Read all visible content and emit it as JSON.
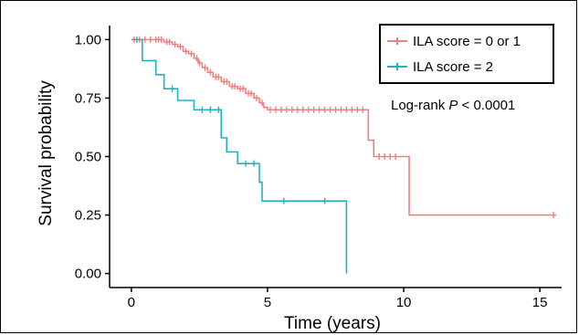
{
  "chart_data": {
    "type": "line",
    "subtype": "kaplan-meier-step",
    "title": "",
    "xlabel": "Time (years)",
    "ylabel": "Survival probability",
    "xlim": [
      -0.8,
      15.8
    ],
    "ylim": [
      -0.06,
      1.06
    ],
    "x_ticks": [
      0,
      5,
      10,
      15
    ],
    "y_ticks": [
      0.0,
      0.25,
      0.5,
      0.75,
      1.0
    ],
    "y_tick_labels": [
      "0.00",
      "0.25",
      "0.50",
      "0.75",
      "1.00"
    ],
    "grid": false,
    "legend_position": "top-right",
    "annotation": {
      "prefix": "Log-rank ",
      "p": "P",
      "suffix": " < 0.0001"
    },
    "series": [
      {
        "name": "ILA score = 0 or 1",
        "color": "#F08080",
        "steps": [
          [
            0,
            1.0
          ],
          [
            1.2,
            0.99
          ],
          [
            1.5,
            0.98
          ],
          [
            1.7,
            0.97
          ],
          [
            1.9,
            0.95
          ],
          [
            2.1,
            0.94
          ],
          [
            2.3,
            0.92
          ],
          [
            2.45,
            0.9
          ],
          [
            2.6,
            0.88
          ],
          [
            2.8,
            0.86
          ],
          [
            3.0,
            0.84
          ],
          [
            3.3,
            0.82
          ],
          [
            3.6,
            0.8
          ],
          [
            3.9,
            0.79
          ],
          [
            4.2,
            0.77
          ],
          [
            4.5,
            0.75
          ],
          [
            4.7,
            0.73
          ],
          [
            4.85,
            0.71
          ],
          [
            5.0,
            0.7
          ],
          [
            8.7,
            0.57
          ],
          [
            8.9,
            0.5
          ],
          [
            10.2,
            0.25
          ],
          [
            15.6,
            0.25
          ]
        ],
        "censor_times": [
          0.1,
          0.3,
          0.5,
          0.7,
          0.9,
          1.0,
          1.1,
          1.3,
          1.4,
          1.6,
          1.8,
          2.0,
          2.2,
          2.4,
          2.5,
          2.7,
          2.9,
          3.1,
          3.2,
          3.4,
          3.5,
          3.7,
          3.8,
          4.0,
          4.1,
          4.3,
          4.4,
          4.6,
          4.8,
          5.1,
          5.3,
          5.5,
          5.7,
          5.9,
          6.1,
          6.3,
          6.5,
          6.7,
          6.9,
          7.1,
          7.3,
          7.5,
          7.7,
          7.9,
          8.1,
          8.3,
          8.5,
          9.1,
          9.3,
          9.5,
          9.7,
          15.5
        ]
      },
      {
        "name": "ILA score = 2",
        "color": "#20B2C0",
        "steps": [
          [
            0,
            1.0
          ],
          [
            0.4,
            0.91
          ],
          [
            0.9,
            0.85
          ],
          [
            1.2,
            0.79
          ],
          [
            1.7,
            0.74
          ],
          [
            2.3,
            0.7
          ],
          [
            3.3,
            0.58
          ],
          [
            3.5,
            0.52
          ],
          [
            3.9,
            0.47
          ],
          [
            4.7,
            0.39
          ],
          [
            4.8,
            0.31
          ],
          [
            7.9,
            0.0
          ]
        ],
        "censor_times": [
          0.2,
          1.5,
          2.6,
          2.9,
          3.2,
          4.2,
          4.5,
          5.6,
          7.1
        ]
      }
    ]
  }
}
